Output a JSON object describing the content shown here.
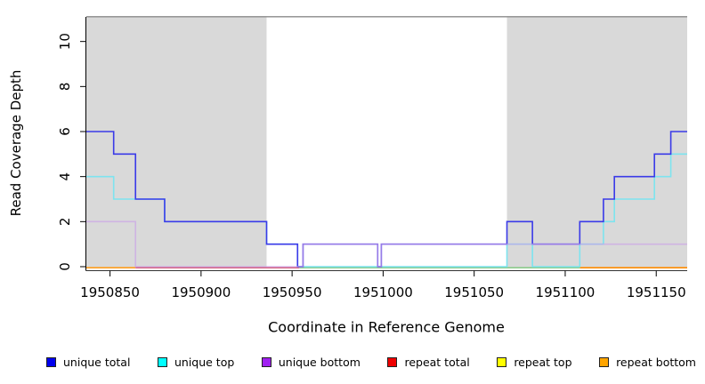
{
  "figure": {
    "xlabel": "Coordinate in Reference Genome",
    "ylabel": "Read Coverage Depth"
  },
  "chart_data": {
    "type": "line",
    "subtype": "step-coverage",
    "title": "",
    "xlabel": "Coordinate in Reference Genome",
    "ylabel": "Read Coverage Depth",
    "xlim": [
      1950837,
      1951167
    ],
    "ylim": [
      0,
      11.2
    ],
    "x_ticks": [
      1950850,
      1950900,
      1950950,
      1951000,
      1951050,
      1951100,
      1951150
    ],
    "y_ticks": [
      0,
      2,
      4,
      6,
      8,
      10
    ],
    "grid": false,
    "legend_position": "bottom",
    "top_boundary_line_y": 11.1,
    "shaded_regions": [
      {
        "x0": 1950837,
        "x1": 1950936,
        "color": "#D9D9D9"
      },
      {
        "x0": 1951068,
        "x1": 1951167,
        "color": "#D9D9D9"
      }
    ],
    "series": [
      {
        "name": "unique total",
        "swatch_color": "#0000EE",
        "line_color": "#3A3AE8",
        "opacity": 1,
        "steps": [
          [
            1950837,
            6
          ],
          [
            1950852,
            5
          ],
          [
            1950864,
            3
          ],
          [
            1950880,
            2
          ],
          [
            1950936,
            1
          ],
          [
            1950953,
            0
          ],
          [
            1950956,
            1
          ],
          [
            1950997,
            0
          ],
          [
            1950999,
            1
          ],
          [
            1951068,
            2
          ],
          [
            1951082,
            1
          ],
          [
            1951108,
            2
          ],
          [
            1951121,
            3
          ],
          [
            1951127,
            4
          ],
          [
            1951149,
            5
          ],
          [
            1951158,
            6
          ]
        ],
        "x_end": 1951167
      },
      {
        "name": "unique top",
        "swatch_color": "#00FFFF",
        "line_color": "#7DE4EF",
        "opacity": 1,
        "steps": [
          [
            1950837,
            4
          ],
          [
            1950852,
            3
          ],
          [
            1950880,
            2
          ],
          [
            1950936,
            1
          ],
          [
            1950953,
            0
          ],
          [
            1951068,
            1
          ],
          [
            1951082,
            0
          ],
          [
            1951108,
            1
          ],
          [
            1951121,
            2
          ],
          [
            1951127,
            3
          ],
          [
            1951149,
            4
          ],
          [
            1951158,
            5
          ]
        ],
        "x_end": 1951167
      },
      {
        "name": "unique bottom",
        "swatch_color": "#A020F0",
        "line_color": "#C9A0E8",
        "opacity": 0.65,
        "steps": [
          [
            1950837,
            2
          ],
          [
            1950864,
            0
          ],
          [
            1950956,
            1
          ],
          [
            1950997,
            0
          ],
          [
            1950999,
            1
          ]
        ],
        "x_end": 1951167
      },
      {
        "name": "repeat total",
        "swatch_color": "#EE0000",
        "line_color": "#D4607E",
        "opacity": 1,
        "steps": [
          [
            1950837,
            0
          ]
        ],
        "x_end": 1951167,
        "render": false
      },
      {
        "name": "repeat top",
        "swatch_color": "#FFFF00",
        "line_color": "#FFFF00",
        "opacity": 1,
        "steps": [
          [
            1950837,
            0
          ]
        ],
        "x_end": 1951167,
        "render": false
      },
      {
        "name": "repeat bottom",
        "swatch_color": "#FFA500",
        "line_color": "#FF9E1E",
        "opacity": 1,
        "steps": [
          [
            1950837,
            0
          ]
        ],
        "x_end": 1951167,
        "render": false
      }
    ],
    "baseline_segments": [
      {
        "x0": 1950837,
        "x1": 1950864,
        "color": "#FF9E1E"
      },
      {
        "x0": 1950864,
        "x1": 1950954,
        "color": "#D4607E"
      },
      {
        "x0": 1950954,
        "x1": 1951108,
        "color": "#8CCC8C"
      },
      {
        "x0": 1951108,
        "x1": 1951167,
        "color": "#FF8C00"
      }
    ]
  },
  "legend": {
    "items": [
      {
        "label": "unique total",
        "color": "#0000EE"
      },
      {
        "label": "unique top",
        "color": "#00FFFF"
      },
      {
        "label": "unique bottom",
        "color": "#A020F0"
      },
      {
        "label": "repeat total",
        "color": "#EE0000"
      },
      {
        "label": "repeat top",
        "color": "#FFFF00"
      },
      {
        "label": "repeat bottom",
        "color": "#FFA500"
      }
    ]
  }
}
